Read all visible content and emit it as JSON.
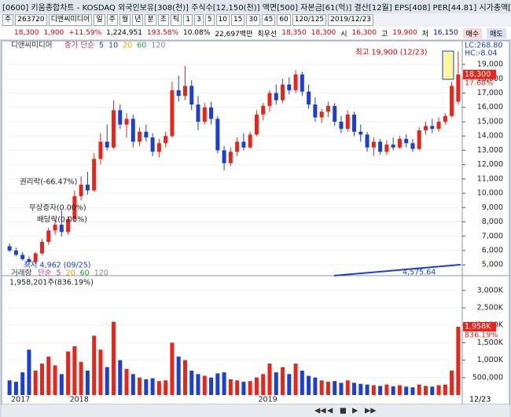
{
  "window": {
    "title": "[0600] 키움종합차트 - KOSDAQ 외국인보유[308(천)] 주식수[12,150(천)] 액면[500] 자본금[61(억)] 결산[12월] EPS[408] PER[44.81] 시가총액[2,2",
    "toolbar": [
      "주",
      "263720",
      "디앤씨미디어",
      "일",
      "주",
      "월",
      "년",
      "분",
      "초",
      "틱",
      "1",
      "3",
      "5",
      "10",
      "15",
      "30",
      "45",
      "60",
      "120/125",
      "2019/12/23"
    ],
    "quote": [
      "18,300",
      "1,900",
      "+11.59%",
      "1,224,951",
      "193.58%",
      "10.08%",
      "22,697백만",
      "최우선",
      "18,350",
      "18,300",
      "시",
      "16,300",
      "고",
      "19,900",
      "저",
      "16,150",
      "매수",
      "매도"
    ],
    "nav_date": "12/23"
  },
  "chart_data": [
    {
      "type": "candlestick",
      "name": "디앤씨미디어",
      "legend": [
        "종가 단순",
        "5",
        "10",
        "20",
        "60",
        "120"
      ],
      "legend_colors": [
        "#c03080",
        "#1a3fd1",
        "#1a3fd1",
        "#f0a000",
        "#2a9a2a",
        "#888888"
      ],
      "up_color": "#e8251b",
      "down_color": "#1a3fd1",
      "categories": [
        "2017",
        null,
        null,
        null,
        null,
        null,
        null,
        null,
        null,
        "2018",
        null,
        null,
        null,
        null,
        null,
        null,
        null,
        null,
        null,
        null,
        null,
        null,
        null,
        null,
        null,
        null,
        null,
        null,
        null,
        null,
        null,
        null,
        null,
        null,
        null,
        null,
        null,
        null,
        "2019",
        null,
        null,
        null,
        null,
        null,
        null,
        null,
        null,
        null,
        null,
        null,
        null,
        null,
        null,
        null,
        null,
        null,
        null,
        null,
        null,
        null,
        null,
        null,
        null,
        null,
        null,
        null,
        null,
        null,
        null,
        null
      ],
      "open": [
        6300,
        6000,
        5700,
        5400,
        5200,
        5800,
        6600,
        7400,
        7800,
        7300,
        8200,
        9800,
        10600,
        10200,
        12400,
        13600,
        13200,
        15800,
        14800,
        15200,
        13600,
        14300,
        13900,
        12900,
        13500,
        14000,
        17200,
        16800,
        17500,
        16200,
        15000,
        16000,
        15200,
        13000,
        12100,
        12900,
        13600,
        13200,
        14100,
        15500,
        16100,
        17000,
        16500,
        17600,
        17200,
        18300,
        17100,
        16200,
        15300,
        15700,
        16100,
        15000,
        14500,
        15500,
        14300,
        14100,
        13200,
        13600,
        12900,
        13400,
        13200,
        13800,
        13500,
        13100,
        14400,
        14700,
        14500,
        15000,
        15400,
        16400
      ],
      "high": [
        6500,
        6200,
        5900,
        5600,
        5900,
        6800,
        7600,
        8200,
        8800,
        8400,
        10200,
        11200,
        11500,
        12800,
        14200,
        14800,
        16500,
        16200,
        15600,
        15500,
        14600,
        14800,
        14200,
        13800,
        14300,
        17800,
        18200,
        18900,
        17900,
        16800,
        16300,
        16400,
        15400,
        13300,
        13200,
        13900,
        14200,
        14300,
        15800,
        16300,
        17200,
        17600,
        18000,
        18100,
        18600,
        18500,
        17600,
        16700,
        15900,
        16400,
        16300,
        15400,
        15800,
        15700,
        14800,
        14300,
        13900,
        13800,
        13700,
        13900,
        14000,
        14100,
        13800,
        14600,
        15000,
        15200,
        15300,
        15600,
        17800,
        19900
      ],
      "low": [
        5900,
        5600,
        5300,
        4962,
        5100,
        5700,
        6400,
        7100,
        7000,
        7100,
        8000,
        9500,
        9900,
        10100,
        12000,
        13000,
        13100,
        14500,
        13900,
        13200,
        13300,
        13600,
        12600,
        12500,
        13200,
        13900,
        16400,
        16500,
        15800,
        14400,
        14800,
        14800,
        12800,
        11600,
        11900,
        12600,
        13000,
        13100,
        14000,
        15100,
        15700,
        16200,
        16300,
        16900,
        17000,
        16800,
        15900,
        15000,
        14900,
        15300,
        14700,
        14200,
        14300,
        14000,
        13600,
        12900,
        12600,
        12700,
        12700,
        13000,
        13100,
        13200,
        12900,
        13000,
        14100,
        14200,
        14300,
        14800,
        15300,
        16200
      ],
      "close": [
        6000,
        5700,
        5400,
        5200,
        5800,
        6600,
        7400,
        7800,
        7300,
        8200,
        9800,
        10600,
        10200,
        12400,
        13600,
        13200,
        15800,
        14800,
        15200,
        13600,
        14300,
        13900,
        12900,
        13500,
        14000,
        17200,
        16800,
        17500,
        16200,
        15000,
        16000,
        15200,
        13000,
        12100,
        12900,
        13600,
        13200,
        14100,
        15500,
        16100,
        17000,
        16500,
        17600,
        17200,
        18300,
        17100,
        16200,
        15300,
        15700,
        16100,
        15000,
        14500,
        15500,
        14300,
        14100,
        13200,
        13600,
        12900,
        13400,
        13200,
        13800,
        13500,
        13100,
        14400,
        14700,
        14500,
        15000,
        15400,
        17500,
        18300
      ],
      "ylim": [
        4300,
        20100
      ],
      "yticks": [
        {
          "value": 5000,
          "label": "5,000"
        },
        {
          "value": 6000,
          "label": "6,000"
        },
        {
          "value": 7000,
          "label": "7,000"
        },
        {
          "value": 8000,
          "label": "8,000"
        },
        {
          "value": 9000,
          "label": "9,000"
        },
        {
          "value": 10000,
          "label": "10,000"
        },
        {
          "value": 11000,
          "label": "11,000"
        },
        {
          "value": 12000,
          "label": "12,000"
        },
        {
          "value": 13000,
          "label": "13,000"
        },
        {
          "value": 14000,
          "label": "14,000"
        },
        {
          "value": 15000,
          "label": "15,000"
        },
        {
          "value": 16000,
          "label": "16,000"
        },
        {
          "value": 17000,
          "label": "17,000"
        },
        {
          "value": 18000,
          "label": "18,000"
        },
        {
          "value": 19000,
          "label": "19,000"
        }
      ],
      "right_labels": [
        "LC:268.80",
        "HC:-8.04"
      ],
      "last_label": "18,300",
      "last_change": "17.68%",
      "annotations": [
        "최고 19,900 (12/23)",
        "권리락(-66.47%)",
        "무상증자(0.00%)",
        "배당락(0.00%)",
        "최저 4,962 (09/25)",
        "4,575.64"
      ]
    },
    {
      "type": "volume",
      "name": "거래량",
      "legend": [
        "단순",
        "5",
        "20",
        "60",
        "120"
      ],
      "legend_colors": [
        "#c03080",
        "#c03080",
        "#f0a000",
        "#2a9a2a",
        "#888888"
      ],
      "summary": "1,958,201주(836.19%)",
      "values": [
        420000,
        380000,
        650000,
        1300000,
        700000,
        900000,
        1100000,
        850000,
        600000,
        1250000,
        1400000,
        950000,
        700000,
        1700000,
        1300000,
        800000,
        2100000,
        1000000,
        750000,
        600000,
        500000,
        450000,
        480000,
        400000,
        420000,
        1500000,
        1100000,
        1000000,
        700000,
        600000,
        550000,
        500000,
        620000,
        650000,
        450000,
        420000,
        380000,
        400000,
        500000,
        600000,
        900000,
        650000,
        800000,
        600000,
        900000,
        700000,
        550000,
        500000,
        420000,
        380000,
        400000,
        350000,
        420000,
        350000,
        320000,
        300000,
        280000,
        260000,
        300000,
        250000,
        280000,
        240000,
        220000,
        300000,
        260000,
        240000,
        280000,
        300000,
        700000,
        1958201
      ],
      "ylim": [
        0,
        3400000
      ],
      "yticks": [
        {
          "value": 500000,
          "label": "500,000"
        },
        {
          "value": 1000000,
          "label": "1,000K"
        },
        {
          "value": 1500000,
          "label": "1,500K"
        },
        {
          "value": 2000000,
          "label": "2,000K"
        },
        {
          "value": 2500000,
          "label": "2,500K"
        },
        {
          "value": 3000000,
          "label": "3,000K"
        }
      ],
      "last_label": "1,958K",
      "last_change": "836.19%"
    }
  ]
}
